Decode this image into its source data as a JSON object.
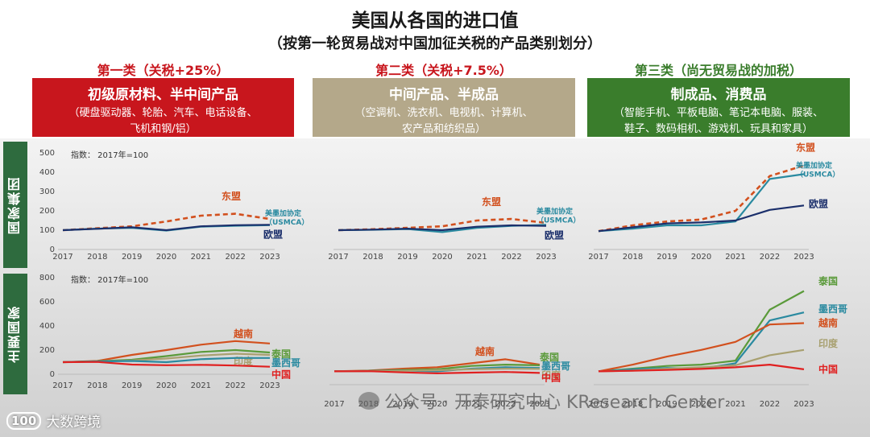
{
  "title": "美国从各国的进口值",
  "subtitle": "（按第一轮贸易战对中国加征关税的产品类别划分）",
  "categories": [
    {
      "head": "第一类（关税+25%）",
      "main": "初级原材料、半中间产品",
      "sub1": "（硬盘驱动器、轮胎、汽车、电话设备、",
      "sub2": "飞机和钢/铝）",
      "head_color": "#c8161d",
      "box_color": "#c8161d"
    },
    {
      "head": "第二类（关税+7.5%）",
      "main": "中间产品、半成品",
      "sub1": "（空调机、洗衣机、电视机、计算机、",
      "sub2": "农产品和纺织品）",
      "head_color": "#c8161d",
      "box_color": "#b4a88a"
    },
    {
      "head": "第三类（尚无贸易战的加税）",
      "main": "制成品、消费品",
      "sub1": "（智能手机、平板电脑、笔记本电脑、服装、",
      "sub2": "鞋子、数码相机、游戏机、玩具和家具）",
      "head_color": "#3a7d2c",
      "box_color": "#3a7d2c"
    }
  ],
  "side_labels": {
    "top": "国家集团",
    "bottom": "主要国家"
  },
  "index_note": "指数： 2017年=100",
  "watermark": "公众号 · 开泰研究中心 KResearch Center",
  "logo_text": "大数跨境",
  "logo_mark": "100",
  "chart_data": [
    {
      "type": "line",
      "panel": "国家集团-第一类",
      "x": [
        "2017",
        "2018",
        "2019",
        "2020",
        "2021",
        "2022",
        "2023"
      ],
      "yticks": [
        0,
        100,
        200,
        300,
        400,
        500
      ],
      "ylim": [
        0,
        500
      ],
      "series": [
        {
          "name": "东盟",
          "color": "#d2501e",
          "dashed": true,
          "values": [
            100,
            110,
            120,
            145,
            175,
            185,
            158
          ]
        },
        {
          "name": "美墨加协定（USMCA）",
          "color": "#2a8aa0",
          "values": [
            100,
            108,
            112,
            98,
            118,
            123,
            126
          ]
        },
        {
          "name": "欧盟",
          "color": "#1b2f6b",
          "values": [
            100,
            107,
            115,
            100,
            120,
            126,
            128
          ]
        }
      ]
    },
    {
      "type": "line",
      "panel": "国家集团-第二类",
      "x": [
        "2017",
        "2018",
        "2019",
        "2020",
        "2021",
        "2022",
        "2023"
      ],
      "ylim": [
        0,
        500
      ],
      "series": [
        {
          "name": "东盟",
          "color": "#d2501e",
          "dashed": true,
          "values": [
            100,
            105,
            112,
            120,
            150,
            158,
            138
          ]
        },
        {
          "name": "美墨加协定（USMCA）",
          "color": "#2a8aa0",
          "values": [
            100,
            102,
            106,
            90,
            112,
            122,
            128
          ]
        },
        {
          "name": "欧盟",
          "color": "#1b2f6b",
          "values": [
            100,
            103,
            108,
            100,
            118,
            125,
            122
          ]
        }
      ]
    },
    {
      "type": "line",
      "panel": "国家集团-第三类",
      "x": [
        "2017",
        "2018",
        "2019",
        "2020",
        "2021",
        "2022",
        "2023"
      ],
      "ylim": [
        0,
        500
      ],
      "series": [
        {
          "name": "东盟",
          "color": "#d2501e",
          "dashed": true,
          "values": [
            95,
            125,
            145,
            155,
            200,
            380,
            435
          ]
        },
        {
          "name": "美墨加协定（USMCA）",
          "color": "#2a8aa0",
          "values": [
            95,
            108,
            125,
            125,
            145,
            365,
            390
          ]
        },
        {
          "name": "欧盟",
          "color": "#1b2f6b",
          "values": [
            95,
            115,
            135,
            140,
            150,
            205,
            228
          ]
        }
      ]
    },
    {
      "type": "line",
      "panel": "主要国家-第一类",
      "x": [
        "2017",
        "2018",
        "2019",
        "2020",
        "2021",
        "2022",
        "2023"
      ],
      "yticks": [
        0,
        200,
        400,
        600,
        800
      ],
      "ylim": [
        0,
        800
      ],
      "series": [
        {
          "name": "越南",
          "color": "#d2501e",
          "values": [
            100,
            110,
            160,
            200,
            245,
            275,
            255
          ]
        },
        {
          "name": "泰国",
          "color": "#5a9a3a",
          "values": [
            100,
            108,
            120,
            150,
            185,
            200,
            180
          ]
        },
        {
          "name": "印度",
          "color": "#a8a070",
          "values": [
            100,
            105,
            115,
            130,
            155,
            170,
            160
          ]
        },
        {
          "name": "墨西哥",
          "color": "#2a8aa0",
          "values": [
            100,
            106,
            110,
            100,
            125,
            135,
            135
          ]
        },
        {
          "name": "中国",
          "color": "#e02020",
          "values": [
            100,
            102,
            80,
            75,
            78,
            72,
            62
          ]
        }
      ]
    },
    {
      "type": "line",
      "panel": "主要国家-第二类",
      "x": [
        "2017",
        "2018",
        "2019",
        "2020",
        "2021",
        "2022",
        "2023"
      ],
      "ylim": [
        0,
        800
      ],
      "series": [
        {
          "name": "越南",
          "color": "#d2501e",
          "values": [
            100,
            105,
            120,
            130,
            160,
            190,
            150
          ]
        },
        {
          "name": "泰国",
          "color": "#5a9a3a",
          "values": [
            100,
            103,
            110,
            115,
            140,
            150,
            145
          ]
        },
        {
          "name": "墨西哥",
          "color": "#2a8aa0",
          "values": [
            100,
            102,
            105,
            100,
            120,
            130,
            125
          ]
        },
        {
          "name": "印度",
          "color": "#a8a070",
          "values": [
            100,
            101,
            104,
            108,
            115,
            120,
            118
          ]
        },
        {
          "name": "中国",
          "color": "#e02020",
          "values": [
            100,
            101,
            92,
            85,
            90,
            95,
            88
          ]
        }
      ]
    },
    {
      "type": "line",
      "panel": "主要国家-第三类",
      "x": [
        "2017",
        "2018",
        "2019",
        "2020",
        "2021",
        "2022",
        "2023"
      ],
      "ylim": [
        0,
        800
      ],
      "series": [
        {
          "name": "泰国",
          "color": "#5a9a3a",
          "values": [
            100,
            120,
            140,
            150,
            180,
            560,
            700
          ]
        },
        {
          "name": "墨西哥",
          "color": "#2a8aa0",
          "values": [
            100,
            115,
            125,
            120,
            160,
            480,
            540
          ]
        },
        {
          "name": "越南",
          "color": "#d2501e",
          "values": [
            100,
            150,
            210,
            260,
            320,
            450,
            460
          ]
        },
        {
          "name": "印度",
          "color": "#a8a070",
          "values": [
            100,
            105,
            120,
            130,
            145,
            220,
            260
          ]
        },
        {
          "name": "中国",
          "color": "#e02020",
          "values": [
            100,
            104,
            110,
            118,
            130,
            150,
            115
          ]
        }
      ]
    }
  ]
}
